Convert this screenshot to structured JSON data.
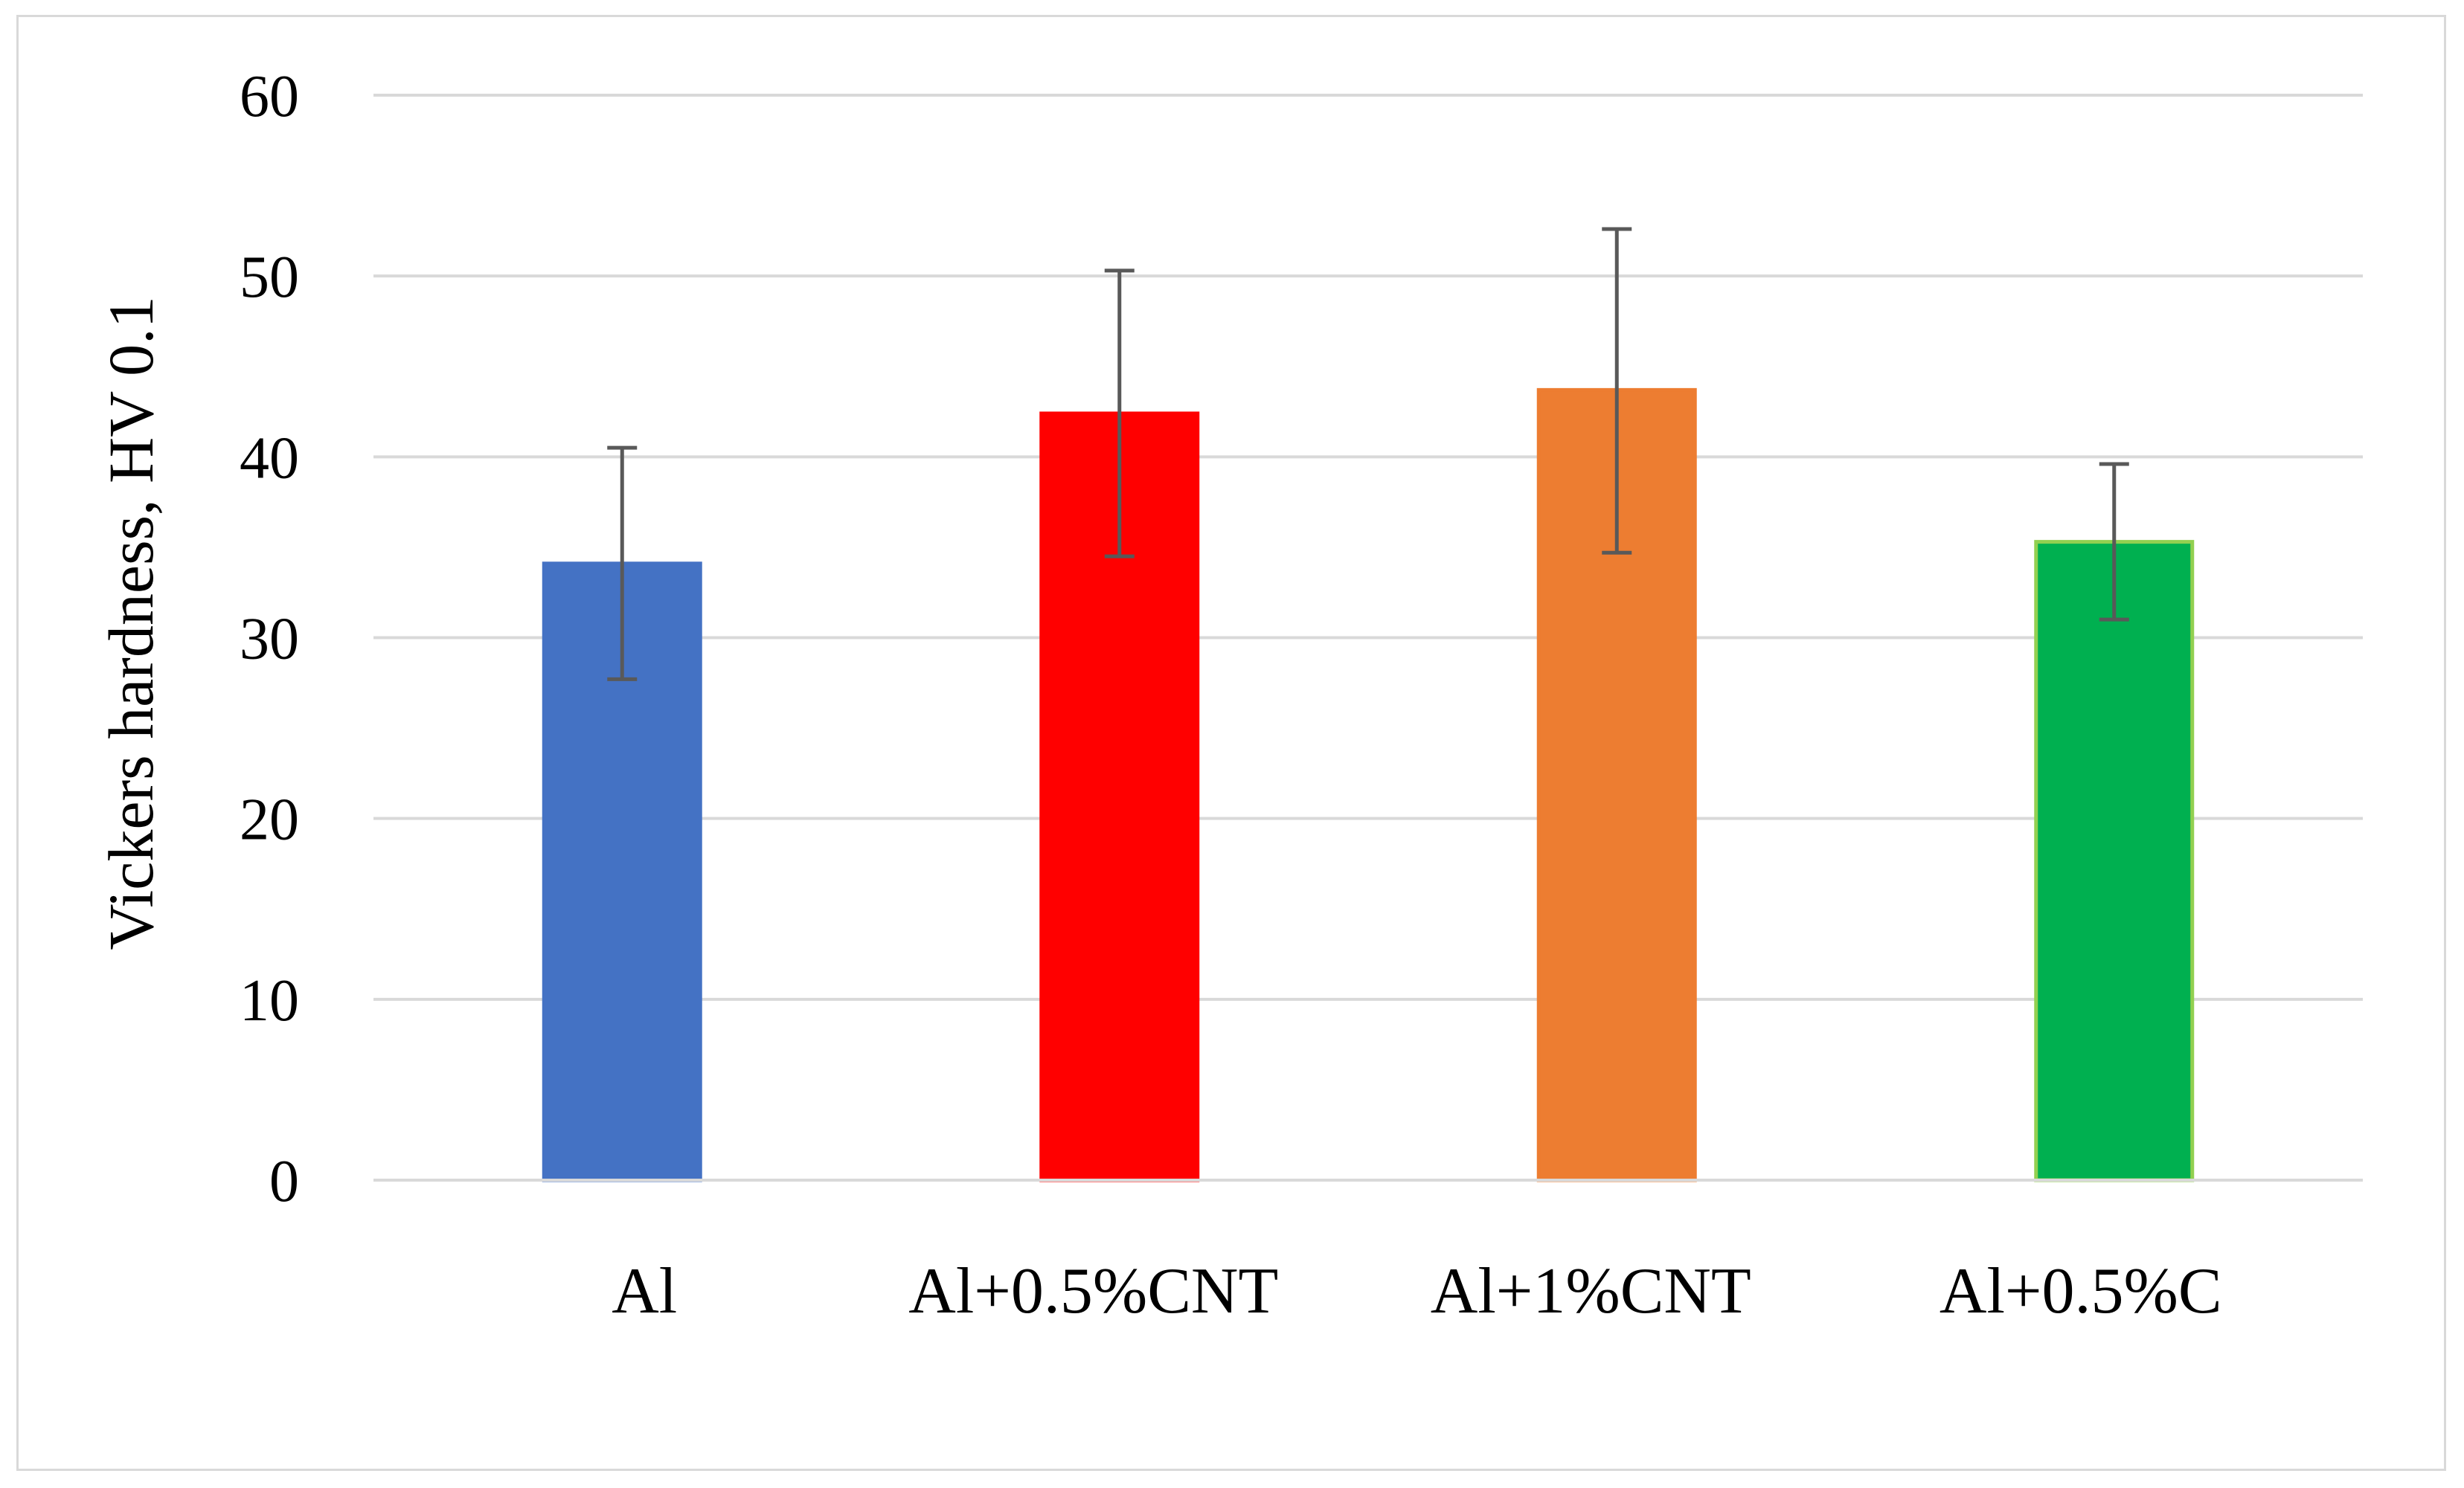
{
  "chart_data": {
    "type": "bar",
    "categories": [
      "Al",
      "Al+0.5%CNT",
      "Al+1%CNT",
      "Al+0.5%C"
    ],
    "values": [
      34.1,
      42.4,
      43.7,
      35.3
    ],
    "error_low": [
      27.7,
      34.5,
      34.7,
      31.0
    ],
    "error_high": [
      40.5,
      50.3,
      52.6,
      39.6
    ],
    "colors": [
      "#4472c4",
      "#ff0000",
      "#ed7d31",
      "#00b050"
    ],
    "bar_edge_colors": [
      "#4472c4",
      "#ff0000",
      "#ed7d31",
      "#92d050"
    ],
    "title": "",
    "xlabel": "",
    "ylabel": "Vickers hardness, HV 0.1",
    "ylim": [
      0,
      60
    ],
    "yticks": [
      0,
      10,
      20,
      30,
      40,
      50,
      60
    ],
    "grid": true,
    "legend": "none"
  }
}
